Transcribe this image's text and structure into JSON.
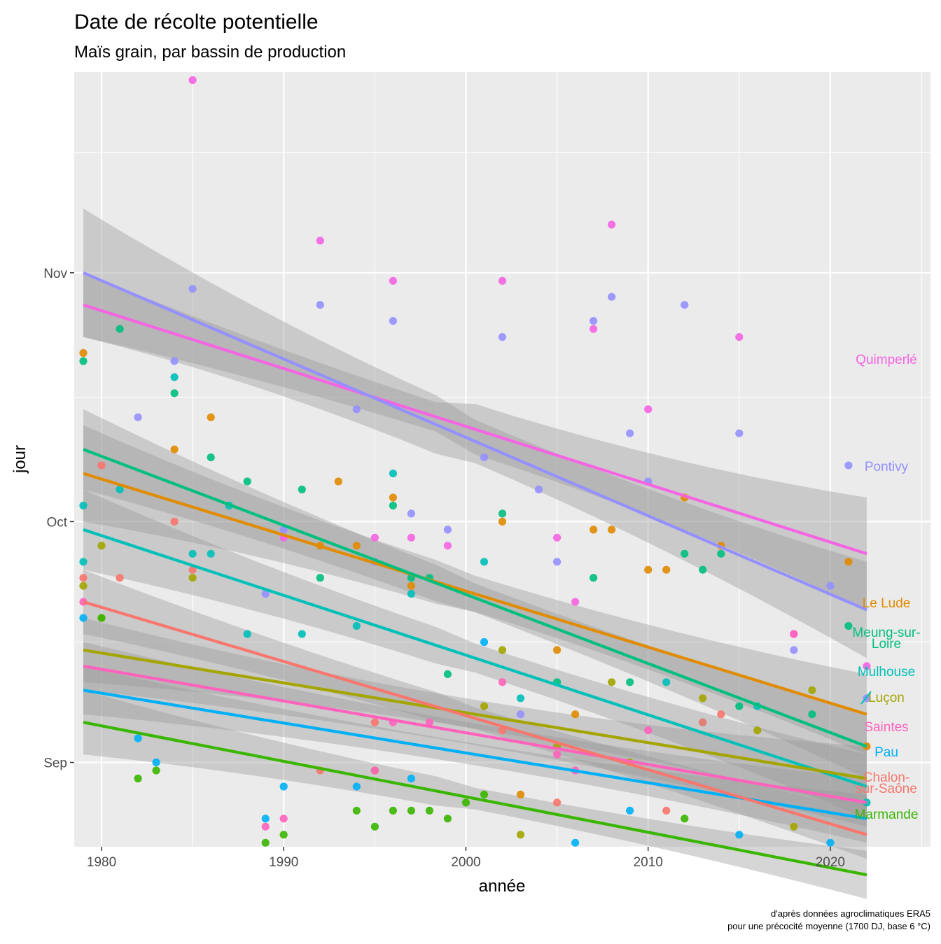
{
  "chart_data": {
    "type": "scatter",
    "title": "Date de récolte potentielle",
    "subtitle": "Maïs grain, par bassin de production",
    "xlabel": "année",
    "ylabel": "jour",
    "caption_line1": "d'après données agroclimatiques ERA5",
    "caption_line2": "pour une précocité moyenne (1700 DJ, base 6 °C)",
    "xlim": [
      1978.5,
      2025.5
    ],
    "ylim": [
      21.5,
      118
    ],
    "x_ticks": [
      1980,
      1990,
      2000,
      2010,
      2020
    ],
    "x_tick_labels": [
      "1980",
      "1990",
      "2000",
      "2010",
      "2020"
    ],
    "y_ticks": [
      32,
      62,
      93
    ],
    "y_tick_labels": [
      "Sep",
      "Oct",
      "Nov"
    ],
    "y_unit_note": "days after 1 August",
    "grid": true,
    "legend": "direct labels at right",
    "series": [
      {
        "name": "Quimperlé",
        "label_lines": [
          "Quimperlé"
        ],
        "color": "#F564E3",
        "trend": {
          "x0": 1979,
          "y0": 89,
          "x1": 2022,
          "y1": 58
        },
        "band": [
          4,
          7
        ],
        "points": [
          [
            1985,
            117
          ],
          [
            1992,
            97
          ],
          [
            1996,
            92
          ],
          [
            2002,
            92
          ],
          [
            2007,
            86
          ],
          [
            2008,
            99
          ],
          [
            2015,
            85
          ],
          [
            2010,
            76
          ],
          [
            1995,
            60
          ],
          [
            1997,
            60
          ],
          [
            1999,
            59
          ],
          [
            2005,
            60
          ],
          [
            1990,
            60
          ],
          [
            2006,
            52
          ],
          [
            2018,
            48
          ],
          [
            2022,
            44
          ]
        ]
      },
      {
        "name": "Pontivy",
        "label_lines": [
          "Pontivy"
        ],
        "color": "#9590FF",
        "trend": {
          "x0": 1979,
          "y0": 93,
          "x1": 2022,
          "y1": 51
        },
        "band": [
          8,
          6
        ],
        "points": [
          [
            1985,
            91
          ],
          [
            1992,
            89
          ],
          [
            1996,
            87
          ],
          [
            2002,
            85
          ],
          [
            2007,
            87
          ],
          [
            2008,
            90
          ],
          [
            2012,
            89
          ],
          [
            2009,
            73
          ],
          [
            2015,
            73
          ],
          [
            2021,
            69
          ],
          [
            1982,
            75
          ],
          [
            1984,
            82
          ],
          [
            1994,
            76
          ],
          [
            2005,
            57
          ],
          [
            1995,
            57
          ],
          [
            1997,
            63
          ],
          [
            1999,
            61
          ],
          [
            2001,
            70
          ],
          [
            2004,
            66
          ],
          [
            2010,
            67
          ],
          [
            2020,
            54
          ],
          [
            2018,
            46
          ],
          [
            2022,
            40
          ],
          [
            2003,
            38
          ],
          [
            1989,
            53
          ],
          [
            1990,
            61
          ]
        ]
      },
      {
        "name": "Le Lude",
        "label_lines": [
          "Le Lude"
        ],
        "color": "#E08B00",
        "trend": {
          "x0": 1979,
          "y0": 68,
          "x1": 2022,
          "y1": 38
        },
        "band": [
          6,
          5
        ],
        "points": [
          [
            1979,
            83
          ],
          [
            1986,
            75
          ],
          [
            1984,
            71
          ],
          [
            1993,
            67
          ],
          [
            1996,
            65
          ],
          [
            2002,
            62
          ],
          [
            2007,
            61
          ],
          [
            2008,
            61
          ],
          [
            1992,
            59
          ],
          [
            1994,
            59
          ],
          [
            2014,
            59
          ],
          [
            2010,
            56
          ],
          [
            2011,
            56
          ],
          [
            2021,
            57
          ],
          [
            1997,
            54
          ],
          [
            2005,
            46
          ],
          [
            2012,
            65
          ],
          [
            2022,
            34
          ],
          [
            2003,
            28
          ],
          [
            2006,
            38
          ]
        ]
      },
      {
        "name": "Meung-sur-Loire",
        "label_lines": [
          "Meung-sur-",
          "Loire"
        ],
        "color": "#00BF7D",
        "trend": {
          "x0": 1979,
          "y0": 71,
          "x1": 2022,
          "y1": 34
        },
        "band": [
          5,
          4
        ],
        "points": [
          [
            1979,
            82
          ],
          [
            1981,
            86
          ],
          [
            1984,
            78
          ],
          [
            1986,
            70
          ],
          [
            1991,
            66
          ],
          [
            1996,
            64
          ],
          [
            2002,
            63
          ],
          [
            2012,
            58
          ],
          [
            2013,
            56
          ],
          [
            2014,
            58
          ],
          [
            2021,
            49
          ],
          [
            1997,
            55
          ],
          [
            1998,
            55
          ],
          [
            1988,
            67
          ],
          [
            1992,
            55
          ],
          [
            1999,
            43
          ],
          [
            2005,
            42
          ],
          [
            2007,
            55
          ],
          [
            2009,
            42
          ],
          [
            2015,
            39
          ],
          [
            2019,
            38
          ]
        ]
      },
      {
        "name": "Mulhouse",
        "label_lines": [
          "Mulhouse"
        ],
        "color": "#00C0B8",
        "trend": {
          "x0": 1979,
          "y0": 61,
          "x1": 2022,
          "y1": 29
        },
        "band": [
          5,
          4
        ],
        "points": [
          [
            1979,
            64
          ],
          [
            1984,
            80
          ],
          [
            1981,
            66
          ],
          [
            1996,
            68
          ],
          [
            1985,
            58
          ],
          [
            1986,
            58
          ],
          [
            1987,
            64
          ],
          [
            1997,
            53
          ],
          [
            1991,
            48
          ],
          [
            1988,
            48
          ],
          [
            1994,
            49
          ],
          [
            2001,
            57
          ],
          [
            2011,
            42
          ],
          [
            1979,
            57
          ],
          [
            2022,
            27
          ],
          [
            2003,
            40
          ],
          [
            2013,
            37
          ],
          [
            2016,
            39
          ]
        ]
      },
      {
        "name": "Luçon",
        "label_lines": [
          "Luçon"
        ],
        "color": "#A3A500",
        "trend": {
          "x0": 1979,
          "y0": 46,
          "x1": 2022,
          "y1": 30
        },
        "band": [
          4,
          4
        ],
        "points": [
          [
            1979,
            54
          ],
          [
            1980,
            59
          ],
          [
            1985,
            55
          ],
          [
            1980,
            50
          ],
          [
            2002,
            46
          ],
          [
            2005,
            34
          ],
          [
            2001,
            39
          ],
          [
            1995,
            31
          ],
          [
            2008,
            42
          ],
          [
            2009,
            32
          ],
          [
            2013,
            40
          ],
          [
            2018,
            24
          ],
          [
            2003,
            23
          ],
          [
            2016,
            36
          ],
          [
            2019,
            41
          ]
        ]
      },
      {
        "name": "Saintes",
        "label_lines": [
          "Saintes"
        ],
        "color": "#FF62BC",
        "trend": {
          "x0": 1979,
          "y0": 44,
          "x1": 2022,
          "y1": 27
        },
        "band": [
          3,
          3
        ],
        "points": [
          [
            1979,
            52
          ],
          [
            1989,
            24
          ],
          [
            1990,
            25
          ],
          [
            1996,
            37
          ],
          [
            2003,
            21
          ],
          [
            2005,
            33
          ],
          [
            2006,
            31
          ],
          [
            2002,
            42
          ],
          [
            1995,
            31
          ],
          [
            2010,
            36
          ],
          [
            2018,
            48
          ],
          [
            2022,
            20
          ],
          [
            1998,
            37
          ]
        ]
      },
      {
        "name": "Pau",
        "label_lines": [
          "Pau"
        ],
        "color": "#00B0F6",
        "trend": {
          "x0": 1979,
          "y0": 41,
          "x1": 2022,
          "y1": 25
        },
        "band": [
          3,
          3
        ],
        "points": [
          [
            1979,
            50
          ],
          [
            1989,
            25
          ],
          [
            1990,
            29
          ],
          [
            1994,
            29
          ],
          [
            1997,
            30
          ],
          [
            2003,
            13
          ],
          [
            2006,
            22
          ],
          [
            2009,
            26
          ],
          [
            2015,
            23
          ],
          [
            2001,
            47
          ],
          [
            2022,
            19
          ],
          [
            2020,
            22
          ],
          [
            1983,
            32
          ],
          [
            1982,
            35
          ]
        ]
      },
      {
        "name": "Chalon-sur-Saône",
        "label_lines": [
          "Chalon-",
          "sur-Saône"
        ],
        "color": "#F8766D",
        "trend": {
          "x0": 1979,
          "y0": 52,
          "x1": 2022,
          "y1": 23
        },
        "band": [
          4,
          3
        ],
        "points": [
          [
            1979,
            55
          ],
          [
            1980,
            69
          ],
          [
            1984,
            62
          ],
          [
            1981,
            55
          ],
          [
            1985,
            56
          ],
          [
            2002,
            36
          ],
          [
            2003,
            10
          ],
          [
            2005,
            27
          ],
          [
            2014,
            38
          ],
          [
            2015,
            18
          ],
          [
            2018,
            16
          ],
          [
            2011,
            26
          ],
          [
            2022,
            18
          ],
          [
            2013,
            37
          ],
          [
            1992,
            31
          ],
          [
            1995,
            37
          ]
        ]
      },
      {
        "name": "Marmande",
        "label_lines": [
          "Marmande"
        ],
        "color": "#39B600",
        "trend": {
          "x0": 1979,
          "y0": 37,
          "x1": 2022,
          "y1": 18
        },
        "band": [
          4,
          3
        ],
        "points": [
          [
            1982,
            30
          ],
          [
            1983,
            31
          ],
          [
            1989,
            22
          ],
          [
            1990,
            23
          ],
          [
            1994,
            26
          ],
          [
            1995,
            24
          ],
          [
            1996,
            26
          ],
          [
            1997,
            26
          ],
          [
            1998,
            26
          ],
          [
            1999,
            25
          ],
          [
            2001,
            28
          ],
          [
            2003,
            16
          ],
          [
            2005,
            19
          ],
          [
            2006,
            17
          ],
          [
            2009,
            19
          ],
          [
            2011,
            18
          ],
          [
            2012,
            25
          ],
          [
            2015,
            12
          ],
          [
            2017,
            17
          ],
          [
            2020,
            16
          ],
          [
            2022,
            10
          ],
          [
            1980,
            50
          ],
          [
            2000,
            27
          ]
        ]
      }
    ]
  }
}
